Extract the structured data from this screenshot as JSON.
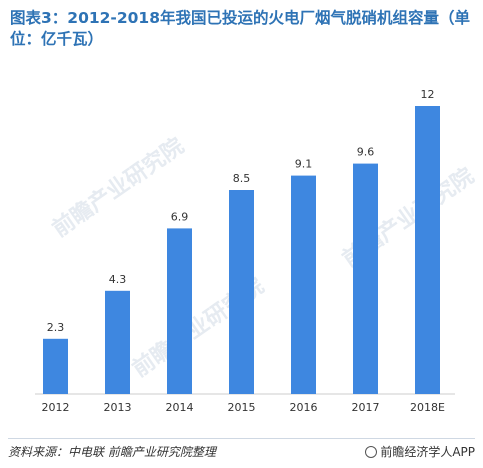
{
  "title": "图表3：2012-2018年我国已投运的火电厂烟气脱硝机组容量（单位：亿千瓦）",
  "footer": {
    "source": "资料来源：中电联  前瞻产业研究院整理",
    "brand": "前瞻经济学人APP"
  },
  "watermark": "前瞻产业研究院",
  "colors": {
    "bar": "#3e87e0",
    "title": "#2e73b5"
  },
  "chart_data": {
    "type": "bar",
    "categories": [
      "2012",
      "2013",
      "2014",
      "2015",
      "2016",
      "2017",
      "2018E"
    ],
    "values": [
      2.3,
      4.3,
      6.9,
      8.5,
      9.1,
      9.6,
      12
    ],
    "value_labels": [
      "2.3",
      "4.3",
      "6.9",
      "8.5",
      "9.1",
      "9.6",
      "12"
    ],
    "ylim": [
      0,
      12
    ],
    "grid": false
  }
}
